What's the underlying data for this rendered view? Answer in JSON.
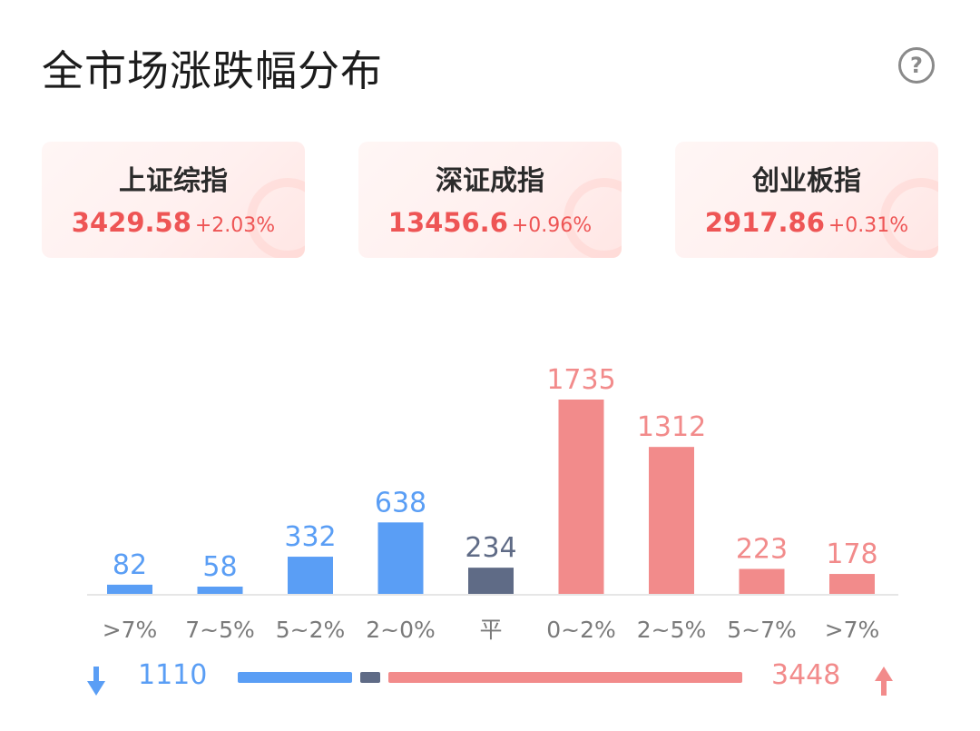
{
  "header": {
    "title": "全市场涨跌幅分布",
    "help_label": "?"
  },
  "indices": [
    {
      "name": "上证综指",
      "price": "3429.58",
      "change": "+2.03%"
    },
    {
      "name": "深证成指",
      "price": "13456.6",
      "change": "+0.96%"
    },
    {
      "name": "创业板指",
      "price": "2917.86",
      "change": "+0.31%"
    }
  ],
  "colors": {
    "down": "#5a9ef5",
    "flat": "#5f6b86",
    "up": "#f28b8b",
    "index_text": "#ee5555"
  },
  "chart_data": {
    "type": "bar",
    "categories": [
      ">7%",
      "7~5%",
      "5~2%",
      "2~0%",
      "平",
      "0~2%",
      "2~5%",
      "5~7%",
      ">7%"
    ],
    "values": [
      82,
      58,
      332,
      638,
      234,
      1735,
      1312,
      223,
      178
    ],
    "groups": [
      "down",
      "down",
      "down",
      "down",
      "flat",
      "up",
      "up",
      "up",
      "up"
    ],
    "title": "",
    "xlabel": "",
    "ylabel": "",
    "ylim": [
      0,
      1735
    ]
  },
  "summary": {
    "down_total": "1110",
    "flat_total": 234,
    "up_total": "3448"
  }
}
